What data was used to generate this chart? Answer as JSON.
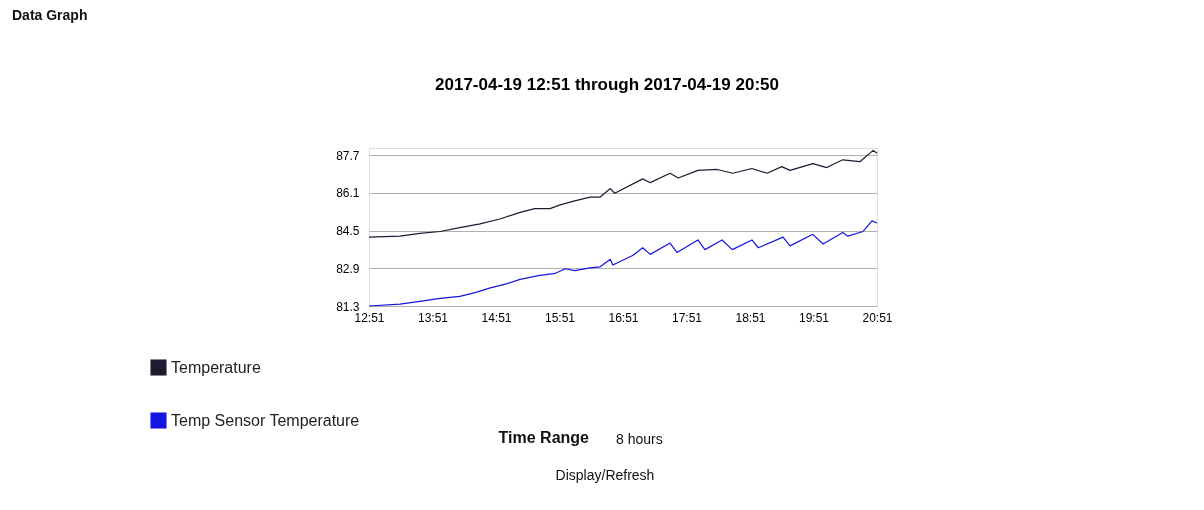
{
  "chart_data": {
    "type": "line",
    "title": "2017-04-19 12:51 through 2017-04-19 20:50",
    "x": [
      12.85,
      13.34,
      13.65,
      13.97,
      14.28,
      14.6,
      14.91,
      15.23,
      15.46,
      15.7,
      15.86,
      16.09,
      16.33,
      16.49,
      16.65,
      16.72,
      17.16,
      17.28,
      17.59,
      17.72,
      18.03,
      18.33,
      18.58,
      18.88,
      19.12,
      19.35,
      19.48,
      19.84,
      20.06,
      20.31,
      20.58,
      20.79,
      20.85
    ],
    "series": [
      {
        "name": "Temperature",
        "color": "#1c1c30",
        "values": [
          84.22,
          84.26,
          84.38,
          84.46,
          84.62,
          84.78,
          84.99,
          85.27,
          85.43,
          85.43,
          85.59,
          85.76,
          85.92,
          85.92,
          86.28,
          86.08,
          86.69,
          86.53,
          86.93,
          86.73,
          87.05,
          87.09,
          86.93,
          87.13,
          86.93,
          87.21,
          87.05,
          87.34,
          87.17,
          87.5,
          87.42,
          87.9,
          87.78
        ]
      },
      {
        "name": "Temp Sensor Temperature",
        "color": "#1515e0",
        "x": [
          12.85,
          13.34,
          13.65,
          13.97,
          14.28,
          14.52,
          14.76,
          15.0,
          15.23,
          15.54,
          15.78,
          15.94,
          16.09,
          16.33,
          16.49,
          16.65,
          16.69,
          17.01,
          17.16,
          17.28,
          17.59,
          17.7,
          18.03,
          18.14,
          18.41,
          18.57,
          18.88,
          18.98,
          19.37,
          19.48,
          19.84,
          20.0,
          20.31,
          20.39,
          20.63,
          20.77,
          20.85
        ],
        "values": [
          81.3,
          81.38,
          81.5,
          81.62,
          81.71,
          81.87,
          82.07,
          82.23,
          82.43,
          82.6,
          82.68,
          82.88,
          82.8,
          82.92,
          82.96,
          83.28,
          83.04,
          83.45,
          83.77,
          83.49,
          83.97,
          83.57,
          84.1,
          83.69,
          84.1,
          83.69,
          84.1,
          83.77,
          84.22,
          83.85,
          84.34,
          83.93,
          84.42,
          84.26,
          84.46,
          84.91,
          84.82
        ]
      }
    ],
    "xlim": [
      12.85,
      20.85
    ],
    "xticks": [
      {
        "value": 12.85,
        "label": "12:51"
      },
      {
        "value": 13.85,
        "label": "13:51"
      },
      {
        "value": 14.85,
        "label": "14:51"
      },
      {
        "value": 15.85,
        "label": "15:51"
      },
      {
        "value": 16.85,
        "label": "16:51"
      },
      {
        "value": 17.85,
        "label": "17:51"
      },
      {
        "value": 18.85,
        "label": "18:51"
      },
      {
        "value": 19.85,
        "label": "19:51"
      },
      {
        "value": 20.85,
        "label": "20:51"
      }
    ],
    "ylim": [
      81.3,
      88.0
    ],
    "yticks": [
      81.3,
      82.9,
      84.5,
      86.1,
      87.7
    ],
    "grid": "y",
    "legend": "bottom left",
    "marker": "none",
    "line_style": "solid",
    "annotations": [
      "Data Graph",
      "Time Range",
      "8 hours",
      "Display/Refresh"
    ]
  }
}
